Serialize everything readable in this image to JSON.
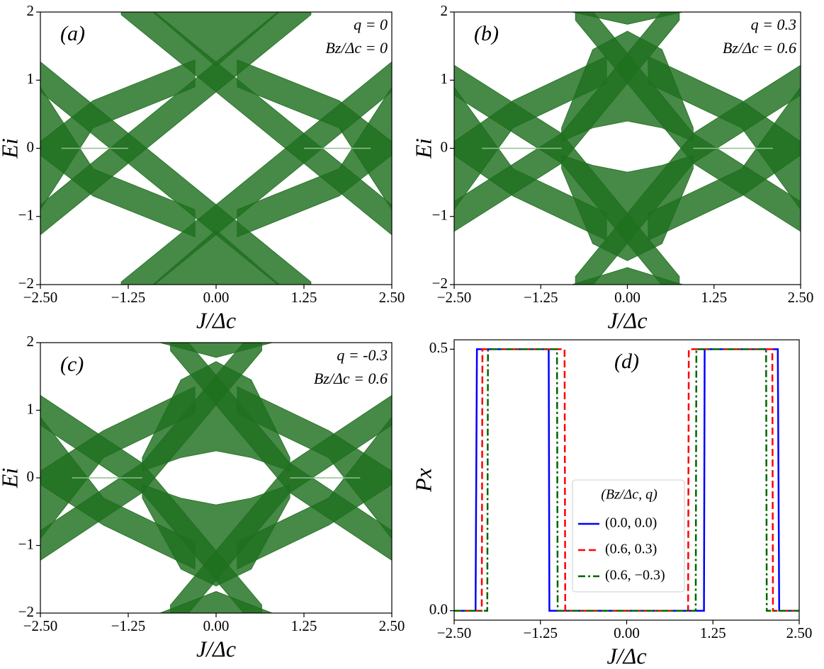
{
  "chart_data": [
    {
      "type": "band",
      "label": "(a)",
      "annotations": [
        "q = 0",
        "Bz/Δc = 0"
      ],
      "xlabel": "J/Δc",
      "ylabel": "Ei",
      "color": "#1f6f1f",
      "line_color": "#8fbf8f",
      "xlim": [
        -2.5,
        2.5
      ],
      "ylim": [
        -2,
        2
      ],
      "xticks": [
        {
          "value": -2.5,
          "label": "−2.50"
        },
        {
          "value": -1.25,
          "label": "−1.25"
        },
        {
          "value": 0,
          "label": "0.00"
        },
        1.25,
        {
          "value": 2.5,
          "label": "2.50"
        }
      ],
      "yticks": [
        {
          "value": -2,
          "label": "−2"
        },
        {
          "value": -1,
          "label": "−1"
        },
        0,
        1,
        2
      ],
      "bands": [
        {
          "x": [
            -1.35,
            2.5
          ],
          "lower": [
            1.96,
            -1.27
          ],
          "upper": [
            2.4,
            -0.83
          ]
        },
        {
          "x": [
            -2.5,
            1.35
          ],
          "lower": [
            -1.27,
            1.96
          ],
          "upper": [
            -0.83,
            2.4
          ]
        },
        {
          "x": [
            -1.35,
            2.5
          ],
          "lower": [
            -2.4,
            0.83
          ],
          "upper": [
            -1.96,
            1.27
          ]
        },
        {
          "x": [
            -2.5,
            1.35
          ],
          "lower": [
            0.83,
            -2.4
          ],
          "upper": [
            1.27,
            -1.96
          ]
        },
        {
          "x": [
            -2.5,
            -1.75,
            -0.3
          ],
          "lower": [
            -0.9,
            0.3,
            0.9
          ],
          "upper": [
            0.1,
            0.7,
            1.3
          ]
        },
        {
          "x": [
            0.3,
            1.75,
            2.5
          ],
          "lower": [
            0.9,
            0.3,
            -0.9
          ],
          "upper": [
            1.3,
            0.7,
            0.1
          ]
        },
        {
          "x": [
            -2.5,
            -1.75,
            -0.3
          ],
          "lower": [
            -0.1,
            -0.7,
            -1.3
          ],
          "upper": [
            0.9,
            -0.3,
            -0.9
          ]
        },
        {
          "x": [
            0.3,
            1.75,
            2.5
          ],
          "lower": [
            -1.3,
            -0.7,
            -0.1
          ],
          "upper": [
            -0.9,
            -0.3,
            0.9
          ]
        },
        {
          "x": [
            -0.9,
            0,
            0.9
          ],
          "lower": [
            2.0,
            1.2,
            2.0
          ],
          "upper": [
            2.0,
            2.0,
            2.0
          ]
        },
        {
          "x": [
            -0.9,
            0,
            0.9
          ],
          "lower": [
            -2.0,
            -2.0,
            -2.0
          ],
          "upper": [
            -2.0,
            -1.2,
            -2.0
          ]
        }
      ],
      "lines": [
        {
          "x": [
            -2.2,
            -1.25
          ],
          "y": [
            0,
            0
          ]
        },
        {
          "x": [
            1.25,
            2.2
          ],
          "y": [
            0,
            0
          ]
        }
      ]
    },
    {
      "type": "band",
      "label": "(b)",
      "annotations": [
        "q = 0.3",
        "Bz/Δc = 0.6"
      ],
      "xlabel": "J/Δc",
      "ylabel": "Ei",
      "color": "#1f6f1f",
      "line_color": "#8fbf8f",
      "xlim": [
        -2.5,
        2.5
      ],
      "ylim": [
        -2,
        2
      ],
      "xticks": [
        {
          "value": -2.5,
          "label": "−2.50"
        },
        {
          "value": -1.25,
          "label": "−1.25"
        },
        {
          "value": 0,
          "label": "0.00"
        },
        1.25,
        {
          "value": 2.5,
          "label": "2.50"
        }
      ],
      "yticks": [
        {
          "value": -2,
          "label": "−2"
        },
        {
          "value": -1,
          "label": "−1"
        },
        0,
        1,
        2
      ],
      "bands": [
        {
          "x": [
            -0.75,
            0.95,
            2.5
          ],
          "lower": [
            1.88,
            -0.22,
            -1.22
          ],
          "upper": [
            2.32,
            0.22,
            -0.78
          ]
        },
        {
          "x": [
            -2.5,
            -0.95,
            0.75
          ],
          "lower": [
            -1.22,
            -0.22,
            1.88
          ],
          "upper": [
            -0.78,
            0.22,
            2.32
          ]
        },
        {
          "x": [
            -0.75,
            0.95,
            2.5
          ],
          "lower": [
            -2.32,
            -0.22,
            0.78
          ],
          "upper": [
            -1.88,
            0.22,
            1.22
          ]
        },
        {
          "x": [
            -2.5,
            -0.95,
            0.75
          ],
          "lower": [
            0.78,
            -0.22,
            -2.32
          ],
          "upper": [
            1.22,
            0.22,
            -1.88
          ]
        },
        {
          "x": [
            -2.5,
            -1.65,
            -0.3
          ],
          "lower": [
            -0.9,
            0.3,
            0.95
          ],
          "upper": [
            0.1,
            0.7,
            1.35
          ]
        },
        {
          "x": [
            0.3,
            1.65,
            2.5
          ],
          "lower": [
            0.95,
            0.3,
            -0.9
          ],
          "upper": [
            1.35,
            0.7,
            0.1
          ]
        },
        {
          "x": [
            -2.5,
            -1.65,
            -0.3
          ],
          "lower": [
            -0.1,
            -0.7,
            -1.35
          ],
          "upper": [
            0.9,
            -0.3,
            -0.95
          ]
        },
        {
          "x": [
            0.3,
            1.65,
            2.5
          ],
          "lower": [
            -1.35,
            -0.7,
            -0.1
          ],
          "upper": [
            -0.95,
            -0.3,
            0.9
          ]
        },
        {
          "x": [
            -0.95,
            -0.5,
            0,
            0.5,
            0.95
          ],
          "lower": [
            0.1,
            0.3,
            0.4,
            0.3,
            0.1
          ],
          "upper": [
            0.3,
            1.45,
            1.72,
            1.45,
            0.3
          ]
        },
        {
          "x": [
            -0.95,
            -0.5,
            0,
            0.5,
            0.95
          ],
          "lower": [
            -0.3,
            -1.4,
            -1.65,
            -1.4,
            -0.3
          ],
          "upper": [
            -0.1,
            -0.25,
            -0.35,
            -0.25,
            -0.1
          ]
        },
        {
          "x": [
            -0.8,
            0,
            0.8
          ],
          "lower": [
            2.0,
            1.82,
            2.0
          ],
          "upper": [
            2.0,
            2.0,
            2.0
          ]
        },
        {
          "x": [
            -0.8,
            0,
            0.8
          ],
          "lower": [
            -2.0,
            -2.0,
            -2.0
          ],
          "upper": [
            -2.0,
            -1.75,
            -2.0
          ]
        }
      ],
      "lines": [
        {
          "x": [
            -2.1,
            -0.95
          ],
          "y": [
            0,
            0
          ]
        },
        {
          "x": [
            0.95,
            2.1
          ],
          "y": [
            0,
            0
          ]
        }
      ]
    },
    {
      "type": "band",
      "label": "(c)",
      "annotations": [
        "q = -0.3",
        "Bz/Δc = 0.6"
      ],
      "xlabel": "J/Δc",
      "ylabel": "Ei",
      "color": "#1f6f1f",
      "line_color": "#8fbf8f",
      "xlim": [
        -2.5,
        2.5
      ],
      "ylim": [
        -2,
        2
      ],
      "xticks": [
        {
          "value": -2.5,
          "label": "−2.50"
        },
        {
          "value": -1.25,
          "label": "−1.25"
        },
        {
          "value": 0,
          "label": "0.00"
        },
        1.25,
        {
          "value": 2.5,
          "label": "2.50"
        }
      ],
      "yticks": [
        {
          "value": -2,
          "label": "−2"
        },
        {
          "value": -1,
          "label": "−1"
        },
        0,
        1,
        2
      ],
      "bands": [
        {
          "x": [
            -0.65,
            1.05,
            2.5
          ],
          "lower": [
            1.88,
            -0.22,
            -1.22
          ],
          "upper": [
            2.32,
            0.22,
            -0.78
          ]
        },
        {
          "x": [
            -2.5,
            -1.05,
            0.65
          ],
          "lower": [
            -1.22,
            -0.22,
            1.88
          ],
          "upper": [
            -0.78,
            0.22,
            2.32
          ]
        },
        {
          "x": [
            -0.65,
            1.05,
            2.5
          ],
          "lower": [
            -2.32,
            -0.22,
            0.78
          ],
          "upper": [
            -1.88,
            0.22,
            1.22
          ]
        },
        {
          "x": [
            -2.5,
            -1.05,
            0.65
          ],
          "lower": [
            0.78,
            -0.22,
            -2.32
          ],
          "upper": [
            1.22,
            0.22,
            -1.88
          ]
        },
        {
          "x": [
            -2.5,
            -1.6,
            -0.3
          ],
          "lower": [
            -0.9,
            0.3,
            0.95
          ],
          "upper": [
            0.1,
            0.7,
            1.35
          ]
        },
        {
          "x": [
            0.3,
            1.6,
            2.5
          ],
          "lower": [
            0.95,
            0.3,
            -0.9
          ],
          "upper": [
            1.35,
            0.7,
            0.1
          ]
        },
        {
          "x": [
            -2.5,
            -1.6,
            -0.3
          ],
          "lower": [
            -0.1,
            -0.7,
            -1.35
          ],
          "upper": [
            0.9,
            -0.3,
            -0.95
          ]
        },
        {
          "x": [
            0.3,
            1.6,
            2.5
          ],
          "lower": [
            -1.35,
            -0.7,
            -0.1
          ],
          "upper": [
            -0.95,
            -0.3,
            0.9
          ]
        },
        {
          "x": [
            -1.05,
            -0.5,
            0,
            0.5,
            1.05
          ],
          "lower": [
            0.1,
            0.3,
            0.4,
            0.3,
            0.1
          ],
          "upper": [
            0.3,
            1.45,
            1.72,
            1.45,
            0.3
          ]
        },
        {
          "x": [
            -1.05,
            -0.5,
            0,
            0.5,
            1.05
          ],
          "lower": [
            -0.3,
            -1.35,
            -1.6,
            -1.35,
            -0.3
          ],
          "upper": [
            -0.1,
            -0.3,
            -0.4,
            -0.3,
            -0.1
          ]
        },
        {
          "x": [
            -0.8,
            0,
            0.8
          ],
          "lower": [
            2.0,
            1.78,
            2.0
          ],
          "upper": [
            2.0,
            2.0,
            2.0
          ]
        },
        {
          "x": [
            -0.8,
            0,
            0.8
          ],
          "lower": [
            -2.0,
            -2.0,
            -2.0
          ],
          "upper": [
            -2.0,
            -1.68,
            -2.0
          ]
        }
      ],
      "lines": [
        {
          "x": [
            -2.05,
            -1.05
          ],
          "y": [
            0,
            0
          ]
        },
        {
          "x": [
            1.05,
            2.05
          ],
          "y": [
            0,
            0
          ]
        }
      ]
    },
    {
      "type": "line",
      "label": "(d)",
      "xlabel": "J/Δc",
      "ylabel": "Px",
      "legend_title": "(Bz/Δc, q)",
      "xlim": [
        -2.5,
        2.5
      ],
      "ylim": [
        -0.018,
        0.518
      ],
      "xticks": [
        {
          "value": -2.5,
          "label": "−2.50"
        },
        {
          "value": -1.25,
          "label": "−1.25"
        },
        {
          "value": 0,
          "label": "0.00"
        },
        1.25,
        {
          "value": 2.5,
          "label": "2.50"
        }
      ],
      "yticks": [
        {
          "value": 0,
          "label": "0.0"
        },
        0.5
      ],
      "series": [
        {
          "name": "(0.0, 0.0)",
          "color": "#0000ff",
          "dash": "solid",
          "x": [
            -2.5,
            -2.19,
            -2.17,
            -1.13,
            -1.12,
            1.12,
            1.13,
            2.19,
            2.21,
            2.5
          ],
          "y": [
            0,
            0,
            0.5,
            0.5,
            0,
            0,
            0.5,
            0.5,
            0,
            0
          ]
        },
        {
          "name": "(0.6, 0.3)",
          "color": "#ff0000",
          "dash": "dashed",
          "x": [
            -2.5,
            -2.1,
            -2.09,
            -0.9,
            -0.89,
            0.89,
            0.9,
            2.11,
            2.12,
            2.5
          ],
          "y": [
            0,
            0,
            0.5,
            0.5,
            0,
            0,
            0.5,
            0.5,
            0,
            0
          ]
        },
        {
          "name": "(0.6, −0.3)",
          "color": "#006400",
          "dash": "dashdot",
          "x": [
            -2.5,
            -2.02,
            -2.01,
            -1.01,
            -1.0,
            1.0,
            1.01,
            2.02,
            2.03,
            2.5
          ],
          "y": [
            0,
            0,
            0.5,
            0.5,
            0,
            0,
            0.5,
            0.5,
            0,
            0
          ]
        }
      ]
    }
  ]
}
